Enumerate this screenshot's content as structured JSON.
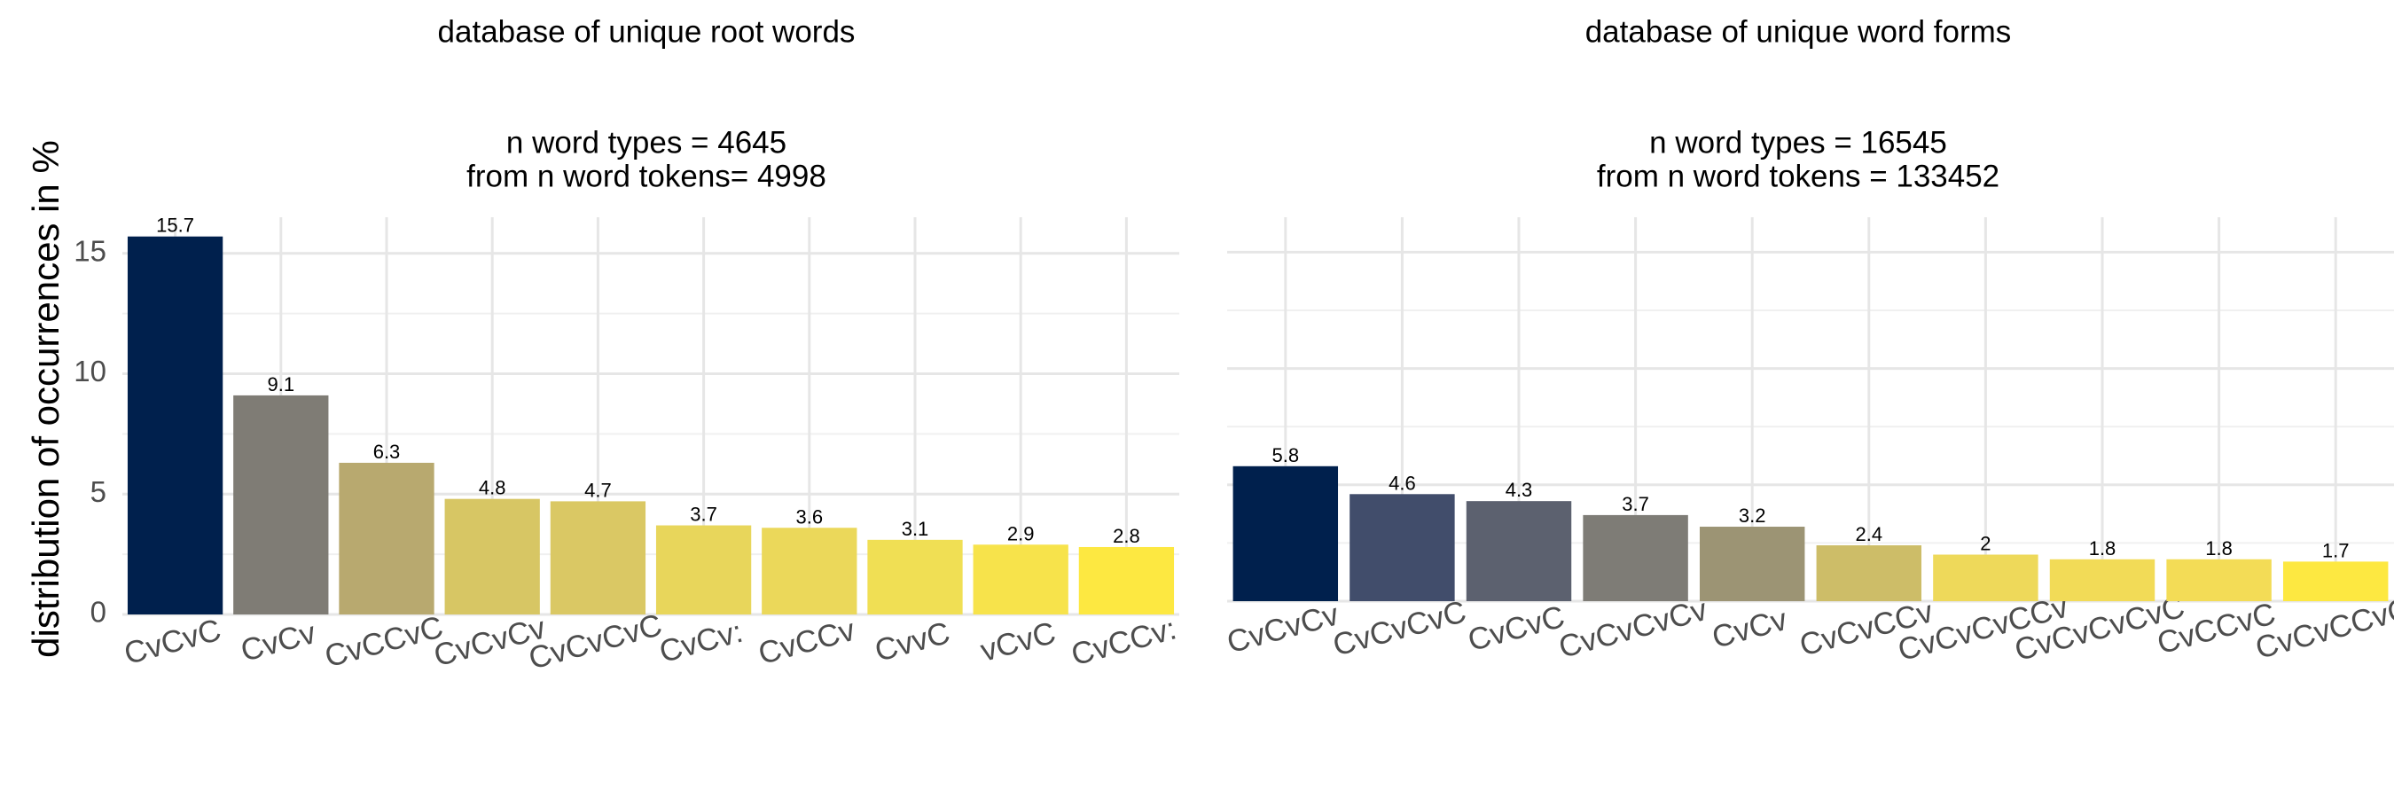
{
  "y_axis_title": "distribution of occurrences in %",
  "chart_data": [
    {
      "type": "bar",
      "title": "database of unique root words",
      "subtitle": [
        "n word types = 4645",
        "from n word tokens= 4998"
      ],
      "ylabel": "distribution of occurrences in %",
      "xlabel": "",
      "ylim": [
        0,
        16.5
      ],
      "yticks": [
        "0",
        "5",
        "10",
        "15"
      ],
      "grid": true,
      "categories": [
        "CvCvC",
        "CvCv",
        "CvCCvC",
        "CvCvCv",
        "CvCvCvC",
        "CvCv:",
        "CvCCv",
        "CvvC",
        "vCvC",
        "CvCCv:"
      ],
      "values": [
        15.7,
        9.1,
        6.3,
        4.8,
        4.7,
        3.7,
        3.6,
        3.1,
        2.9,
        2.8
      ],
      "value_labels": [
        "15.7",
        "9.1",
        "6.3",
        "4.8",
        "4.7",
        "3.7",
        "3.6",
        "3.1",
        "2.9",
        "2.8"
      ],
      "colors": [
        "#00204d",
        "#7f7c75",
        "#b8a96f",
        "#d7c664",
        "#dac864",
        "#e8d65b",
        "#ebd85a",
        "#f0df54",
        "#f7e34b",
        "#fde841"
      ]
    },
    {
      "type": "bar",
      "title": "database of unique word forms",
      "subtitle": [
        "n word types = 16545",
        "from n word tokens = 133452"
      ],
      "xlabel": "",
      "ylim": [
        0,
        16.5
      ],
      "yticks": [],
      "grid": true,
      "categories": [
        "CvCvCv",
        "CvCvCvC",
        "CvCvC",
        "CvCvCvCv",
        "CvCv",
        "CvCvCCv",
        "CvCvCvCCv",
        "CvCvCvCvC",
        "CvCCvC",
        "CvCvCCvC"
      ],
      "values": [
        5.8,
        4.6,
        4.3,
        3.7,
        3.2,
        2.4,
        2,
        1.8,
        1.8,
        1.7
      ],
      "value_labels": [
        "5.8",
        "4.6",
        "4.3",
        "3.7",
        "3.2",
        "2.4",
        "2",
        "1.8",
        "1.8",
        "1.7"
      ],
      "colors": [
        "#00204d",
        "#414d6b",
        "#5c616f",
        "#7e7c76",
        "#9c9474",
        "#cdbd68",
        "#eed95a",
        "#f2db57",
        "#f3dc56",
        "#fde841"
      ]
    }
  ]
}
